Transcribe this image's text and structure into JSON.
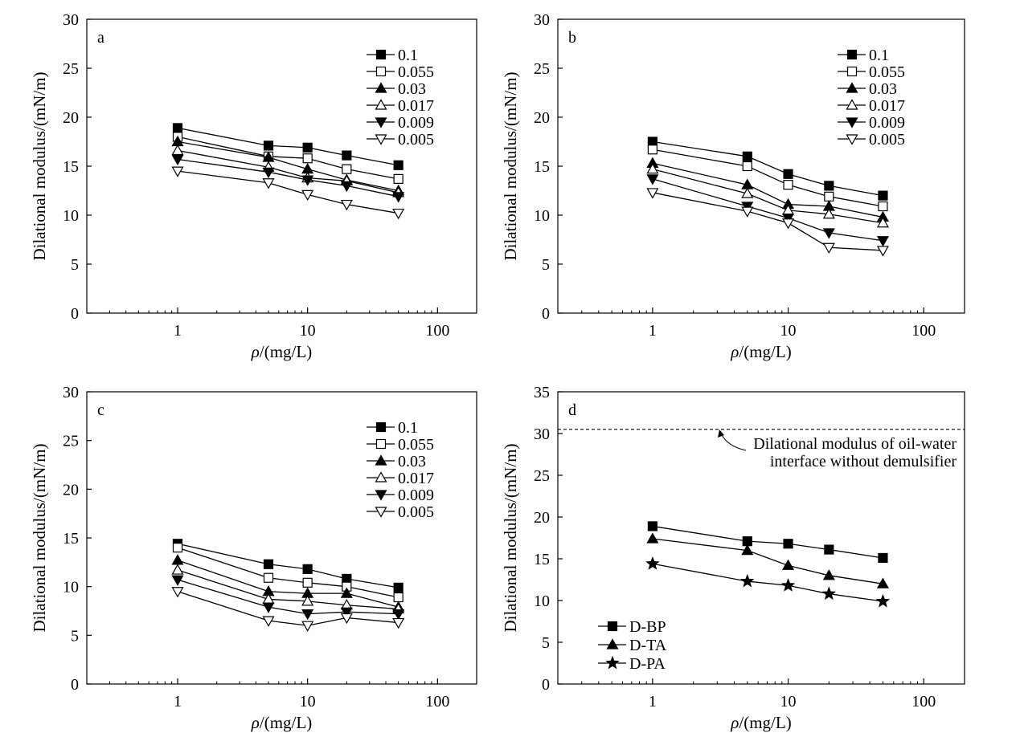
{
  "chart_data": [
    {
      "type": "line",
      "panel_label": "a",
      "xlabel_var": "ρ",
      "xlabel_unit": "/(mg/L)",
      "ylabel": "Dilational modulus/(mN/m)",
      "xscale": "log",
      "xlim": [
        0.2,
        200
      ],
      "ylim": [
        0,
        30
      ],
      "xticks": [
        1,
        10,
        100
      ],
      "xtick_labels": [
        "1",
        "10",
        "100"
      ],
      "yticks": [
        0,
        5,
        10,
        15,
        20,
        25,
        30
      ],
      "ytick_labels": [
        "0",
        "5",
        "10",
        "15",
        "20",
        "25",
        "30"
      ],
      "legend_position": "top-right",
      "grid": false,
      "x": [
        1,
        5,
        10,
        20,
        50
      ],
      "series": [
        {
          "name": "0.1",
          "marker": "square-filled",
          "values": [
            18.9,
            17.1,
            16.9,
            16.1,
            15.1
          ]
        },
        {
          "name": "0.055",
          "marker": "square-open",
          "values": [
            18.0,
            16.0,
            15.8,
            14.7,
            13.7
          ]
        },
        {
          "name": "0.03",
          "marker": "triangle-up-filled",
          "values": [
            17.5,
            15.9,
            14.7,
            13.6,
            12.5
          ]
        },
        {
          "name": "0.017",
          "marker": "triangle-up-open",
          "values": [
            16.6,
            14.9,
            13.8,
            13.5,
            12.3
          ]
        },
        {
          "name": "0.009",
          "marker": "triangle-down-filled",
          "values": [
            15.7,
            14.4,
            13.6,
            13.0,
            11.9
          ]
        },
        {
          "name": "0.005",
          "marker": "triangle-down-open",
          "values": [
            14.5,
            13.3,
            12.1,
            11.1,
            10.2
          ]
        }
      ]
    },
    {
      "type": "line",
      "panel_label": "b",
      "xlabel_var": "ρ",
      "xlabel_unit": "/(mg/L)",
      "ylabel": "Dilational modulus/(mN/m)",
      "xscale": "log",
      "xlim": [
        0.2,
        200
      ],
      "ylim": [
        0,
        30
      ],
      "xticks": [
        1,
        10,
        100
      ],
      "xtick_labels": [
        "1",
        "10",
        "100"
      ],
      "yticks": [
        0,
        5,
        10,
        15,
        20,
        25,
        30
      ],
      "ytick_labels": [
        "0",
        "5",
        "10",
        "15",
        "20",
        "25",
        "30"
      ],
      "legend_position": "top-right",
      "grid": false,
      "x": [
        1,
        5,
        10,
        20,
        50
      ],
      "series": [
        {
          "name": "0.1",
          "marker": "square-filled",
          "values": [
            17.5,
            16.0,
            14.2,
            13.0,
            12.0
          ]
        },
        {
          "name": "0.055",
          "marker": "square-open",
          "values": [
            16.7,
            15.0,
            13.1,
            11.9,
            10.9
          ]
        },
        {
          "name": "0.03",
          "marker": "triangle-up-filled",
          "values": [
            15.3,
            13.1,
            11.1,
            10.9,
            9.8
          ]
        },
        {
          "name": "0.017",
          "marker": "triangle-up-open",
          "values": [
            14.7,
            12.2,
            10.5,
            10.1,
            9.2
          ]
        },
        {
          "name": "0.009",
          "marker": "triangle-down-filled",
          "values": [
            13.7,
            10.9,
            9.7,
            8.2,
            7.4
          ]
        },
        {
          "name": "0.005",
          "marker": "triangle-down-open",
          "values": [
            12.3,
            10.4,
            9.2,
            6.7,
            6.4
          ]
        }
      ]
    },
    {
      "type": "line",
      "panel_label": "c",
      "xlabel_var": "ρ",
      "xlabel_unit": "/(mg/L)",
      "ylabel": "Dilational modulus/(mN/m)",
      "xscale": "log",
      "xlim": [
        0.2,
        200
      ],
      "ylim": [
        0,
        30
      ],
      "xticks": [
        1,
        10,
        100
      ],
      "xtick_labels": [
        "1",
        "10",
        "100"
      ],
      "yticks": [
        0,
        5,
        10,
        15,
        20,
        25,
        30
      ],
      "ytick_labels": [
        "0",
        "5",
        "10",
        "15",
        "20",
        "25",
        "30"
      ],
      "legend_position": "top-right",
      "grid": false,
      "x": [
        1,
        5,
        10,
        20,
        50
      ],
      "series": [
        {
          "name": "0.1",
          "marker": "square-filled",
          "values": [
            14.4,
            12.3,
            11.8,
            10.8,
            9.9
          ]
        },
        {
          "name": "0.055",
          "marker": "square-open",
          "values": [
            14.0,
            10.9,
            10.4,
            10.0,
            8.9
          ]
        },
        {
          "name": "0.03",
          "marker": "triangle-up-filled",
          "values": [
            12.7,
            9.5,
            9.3,
            9.3,
            7.9
          ]
        },
        {
          "name": "0.017",
          "marker": "triangle-up-open",
          "values": [
            11.7,
            8.7,
            8.5,
            8.1,
            7.7
          ]
        },
        {
          "name": "0.009",
          "marker": "triangle-down-filled",
          "values": [
            10.7,
            7.9,
            7.2,
            7.4,
            7.2
          ]
        },
        {
          "name": "0.005",
          "marker": "triangle-down-open",
          "values": [
            9.5,
            6.5,
            6.0,
            6.8,
            6.3
          ]
        }
      ]
    },
    {
      "type": "line",
      "panel_label": "d",
      "xlabel_var": "ρ",
      "xlabel_unit": "/(mg/L)",
      "ylabel": "Dilational modulus/(mN/m)",
      "xscale": "log",
      "xlim": [
        0.2,
        200
      ],
      "ylim": [
        0,
        35
      ],
      "xticks": [
        1,
        10,
        100
      ],
      "xtick_labels": [
        "1",
        "10",
        "100"
      ],
      "yticks": [
        0,
        5,
        10,
        15,
        20,
        25,
        30,
        35
      ],
      "ytick_labels": [
        "0",
        "5",
        "10",
        "15",
        "20",
        "25",
        "30",
        "35"
      ],
      "legend_position": "bottom-left",
      "grid": false,
      "reference_line": {
        "y": 30.5,
        "style": "dashed",
        "annotation": [
          "Dilational modulus of oil-water",
          "interface without demulsifier"
        ]
      },
      "x": [
        1,
        5,
        10,
        20,
        50
      ],
      "series": [
        {
          "name": "D-BP",
          "marker": "square-filled",
          "values": [
            18.9,
            17.1,
            16.8,
            16.1,
            15.1
          ]
        },
        {
          "name": "D-TA",
          "marker": "triangle-up-filled",
          "values": [
            17.4,
            16.0,
            14.2,
            13.0,
            12.0
          ]
        },
        {
          "name": "D-PA",
          "marker": "star-filled",
          "values": [
            14.4,
            12.3,
            11.8,
            10.8,
            9.9
          ]
        }
      ]
    }
  ]
}
